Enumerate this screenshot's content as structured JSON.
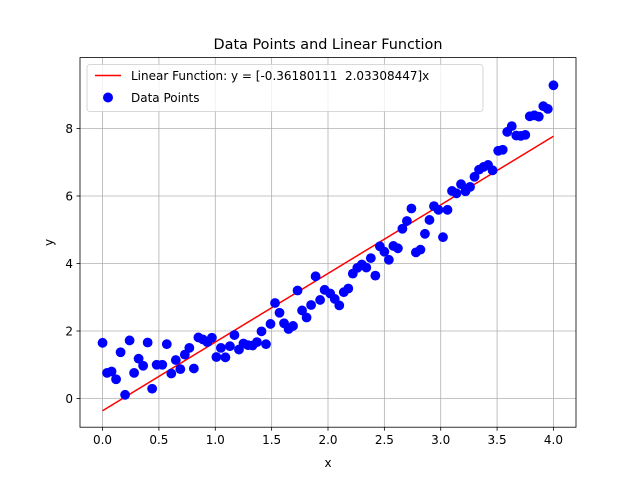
{
  "chart_data": {
    "type": "scatter",
    "title": "Data Points and Linear Function",
    "xlabel": "x",
    "ylabel": "y",
    "xlim": [
      -0.2,
      4.2
    ],
    "ylim": [
      -0.85,
      10.1
    ],
    "xticks": [
      0.0,
      0.5,
      1.0,
      1.5,
      2.0,
      2.5,
      3.0,
      3.5,
      4.0
    ],
    "xtick_labels": [
      "0.0",
      "0.5",
      "1.0",
      "1.5",
      "2.0",
      "2.5",
      "3.0",
      "3.5",
      "4.0"
    ],
    "yticks": [
      0,
      2,
      4,
      6,
      8
    ],
    "ytick_labels": [
      "0",
      "2",
      "4",
      "6",
      "8"
    ],
    "grid": true,
    "legend_position": "upper-left",
    "line": {
      "name": "Linear Function: y = [-0.36180111  2.03308447]x",
      "color": "#ff0000",
      "x": [
        0,
        4
      ],
      "y": [
        -0.362,
        7.77
      ]
    },
    "scatter": {
      "name": "Data Points",
      "color": "#0000ff",
      "points": [
        [
          0.0,
          1.65
        ],
        [
          0.04,
          0.76
        ],
        [
          0.08,
          0.8
        ],
        [
          0.12,
          0.57
        ],
        [
          0.16,
          1.37
        ],
        [
          0.2,
          0.11
        ],
        [
          0.24,
          1.72
        ],
        [
          0.28,
          0.76
        ],
        [
          0.32,
          1.18
        ],
        [
          0.36,
          0.97
        ],
        [
          0.4,
          1.66
        ],
        [
          0.44,
          0.29
        ],
        [
          0.48,
          1.0
        ],
        [
          0.53,
          1.0
        ],
        [
          0.57,
          1.61
        ],
        [
          0.61,
          0.74
        ],
        [
          0.65,
          1.14
        ],
        [
          0.69,
          0.87
        ],
        [
          0.73,
          1.3
        ],
        [
          0.77,
          1.5
        ],
        [
          0.81,
          0.89
        ],
        [
          0.85,
          1.81
        ],
        [
          0.89,
          1.75
        ],
        [
          0.93,
          1.67
        ],
        [
          0.97,
          1.8
        ],
        [
          1.01,
          1.23
        ],
        [
          1.05,
          1.5
        ],
        [
          1.09,
          1.22
        ],
        [
          1.13,
          1.55
        ],
        [
          1.17,
          1.88
        ],
        [
          1.21,
          1.45
        ],
        [
          1.25,
          1.63
        ],
        [
          1.29,
          1.58
        ],
        [
          1.33,
          1.57
        ],
        [
          1.37,
          1.67
        ],
        [
          1.41,
          1.99
        ],
        [
          1.45,
          1.61
        ],
        [
          1.49,
          2.21
        ],
        [
          1.53,
          2.83
        ],
        [
          1.57,
          2.54
        ],
        [
          1.61,
          2.23
        ],
        [
          1.65,
          2.06
        ],
        [
          1.69,
          2.15
        ],
        [
          1.73,
          3.2
        ],
        [
          1.77,
          2.61
        ],
        [
          1.81,
          2.4
        ],
        [
          1.85,
          2.77
        ],
        [
          1.89,
          3.62
        ],
        [
          1.93,
          2.92
        ],
        [
          1.97,
          3.22
        ],
        [
          2.02,
          3.11
        ],
        [
          2.06,
          2.95
        ],
        [
          2.1,
          2.76
        ],
        [
          2.14,
          3.15
        ],
        [
          2.18,
          3.26
        ],
        [
          2.22,
          3.7
        ],
        [
          2.26,
          3.87
        ],
        [
          2.3,
          3.97
        ],
        [
          2.34,
          3.88
        ],
        [
          2.38,
          4.16
        ],
        [
          2.42,
          3.64
        ],
        [
          2.46,
          4.51
        ],
        [
          2.5,
          4.35
        ],
        [
          2.54,
          4.11
        ],
        [
          2.58,
          4.52
        ],
        [
          2.62,
          4.45
        ],
        [
          2.66,
          5.03
        ],
        [
          2.7,
          5.26
        ],
        [
          2.74,
          5.63
        ],
        [
          2.78,
          4.33
        ],
        [
          2.82,
          4.41
        ],
        [
          2.86,
          4.88
        ],
        [
          2.9,
          5.29
        ],
        [
          2.94,
          5.7
        ],
        [
          2.98,
          5.59
        ],
        [
          3.02,
          4.78
        ],
        [
          3.06,
          5.59
        ],
        [
          3.1,
          6.15
        ],
        [
          3.14,
          6.08
        ],
        [
          3.18,
          6.35
        ],
        [
          3.22,
          6.14
        ],
        [
          3.26,
          6.27
        ],
        [
          3.3,
          6.57
        ],
        [
          3.34,
          6.78
        ],
        [
          3.38,
          6.86
        ],
        [
          3.42,
          6.92
        ],
        [
          3.46,
          6.76
        ],
        [
          3.51,
          7.34
        ],
        [
          3.55,
          7.37
        ],
        [
          3.59,
          7.9
        ],
        [
          3.63,
          8.07
        ],
        [
          3.67,
          7.79
        ],
        [
          3.71,
          7.78
        ],
        [
          3.75,
          7.81
        ],
        [
          3.79,
          8.36
        ],
        [
          3.83,
          8.39
        ],
        [
          3.87,
          8.35
        ],
        [
          3.91,
          8.66
        ],
        [
          3.95,
          8.58
        ],
        [
          4.0,
          9.28
        ]
      ]
    }
  }
}
